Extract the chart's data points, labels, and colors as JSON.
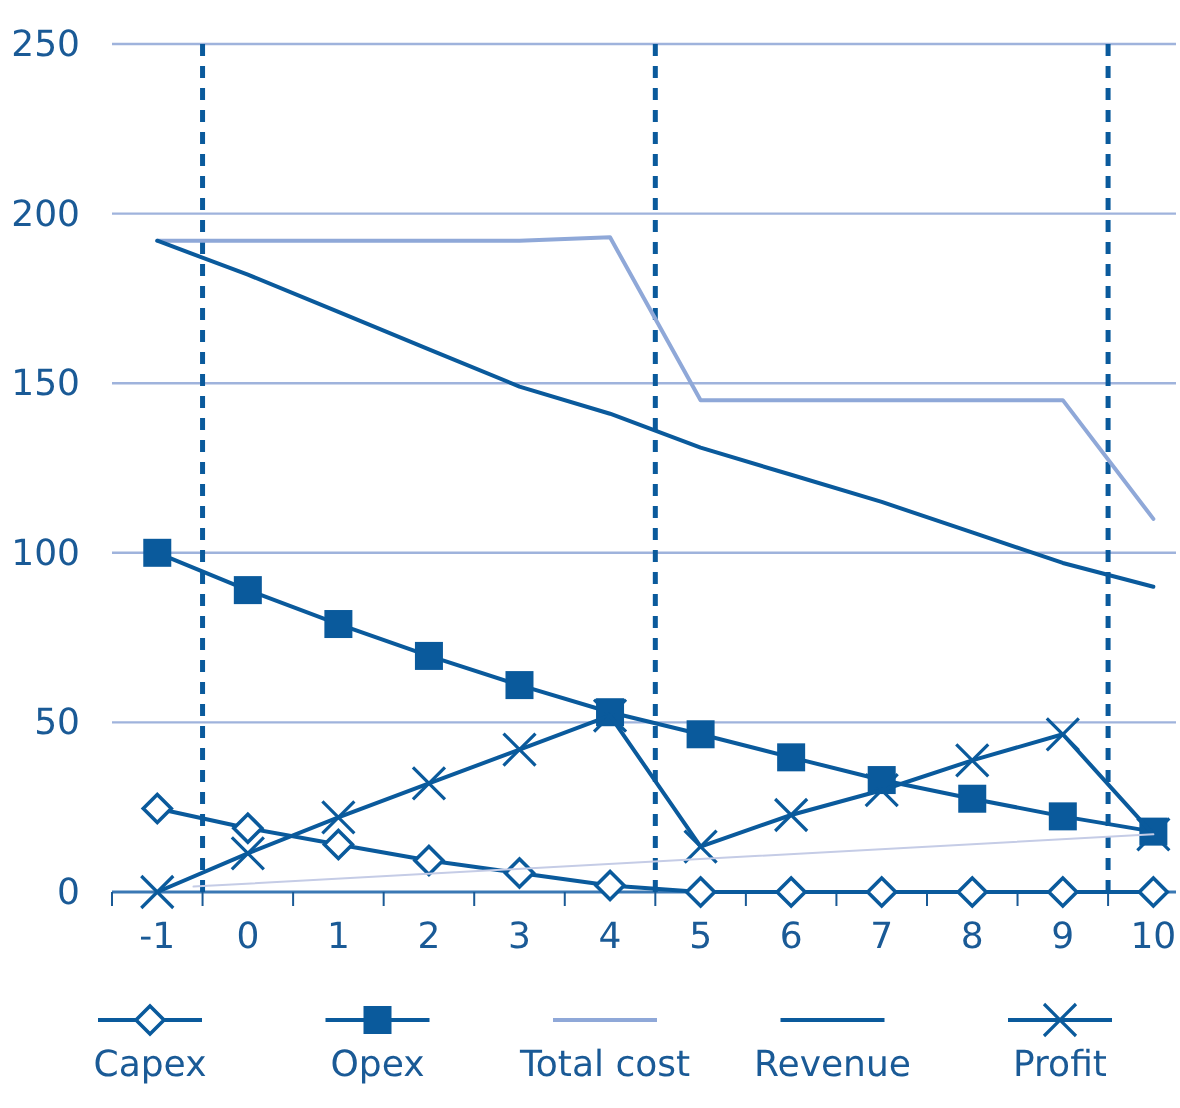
{
  "chart_data": {
    "type": "line",
    "x": [
      -1,
      0,
      1,
      2,
      3,
      4,
      5,
      6,
      7,
      8,
      9,
      10
    ],
    "series": [
      {
        "name": "Capex",
        "color": "#0a5a9c",
        "marker": "diamond",
        "values": [
          24.6,
          18.8,
          14,
          9.3,
          5.6,
          1.9,
          0,
          0,
          0,
          0,
          0,
          0
        ]
      },
      {
        "name": "Opex",
        "color": "#0a5a9c",
        "marker": "square",
        "values": [
          100,
          89,
          79,
          69.6,
          61,
          53,
          46.5,
          39.7,
          33,
          27.5,
          22.3,
          17.8
        ]
      },
      {
        "name": "Total cost",
        "color": "#8fa8d8",
        "marker": "none",
        "values": [
          192,
          192,
          192,
          192,
          192,
          193,
          145,
          145,
          145,
          145,
          145,
          110
        ]
      },
      {
        "name": "Revenue",
        "color": "#0a5a9c",
        "marker": "none",
        "values": [
          192,
          182,
          171,
          160,
          149,
          141,
          131,
          123,
          115,
          106,
          97,
          90
        ]
      },
      {
        "name": "Profit",
        "color": "#0a5a9c",
        "marker": "cross",
        "values": [
          0,
          11.4,
          22,
          32,
          42,
          52,
          13.4,
          22.7,
          30,
          38.8,
          46.5,
          17
        ]
      },
      {
        "color": "#c5cce6",
        "marker": "none",
        "x": [
          -0.6,
          10
        ],
        "values": [
          1.6,
          17
        ]
      }
    ],
    "xlim": [
      -1.5,
      10.25
    ],
    "xticks": [
      {
        "value": -1.5,
        "label": null
      },
      -1,
      {
        "value": -0.5,
        "label": null
      },
      0,
      {
        "value": 0.5,
        "label": null
      },
      1,
      {
        "value": 1.5,
        "label": null
      },
      2,
      {
        "value": 2.5,
        "label": null
      },
      3,
      {
        "value": 3.5,
        "label": null
      },
      4,
      {
        "value": 4.5,
        "label": null
      },
      5,
      {
        "value": 5.5,
        "label": null
      },
      6,
      {
        "value": 6.5,
        "label": null
      },
      7,
      {
        "value": 7.5,
        "label": null
      },
      8,
      {
        "value": 8.5,
        "label": null
      },
      9,
      {
        "value": 9.5,
        "label": null
      },
      10
    ],
    "ylim": [
      0,
      250
    ],
    "yticks": [
      0,
      50,
      100,
      150,
      200,
      250
    ],
    "grid": "y",
    "legend": "bottom",
    "ref_lines": [
      {
        "axis": "x",
        "value": -0.5,
        "color": "#0a5a9c",
        "line_style": "dashed"
      },
      {
        "axis": "x",
        "value": 4.5,
        "color": "#0a5a9c",
        "line_style": "dashed"
      },
      {
        "axis": "x",
        "value": 9.5,
        "color": "#0a5a9c",
        "line_style": "dashed"
      }
    ]
  }
}
